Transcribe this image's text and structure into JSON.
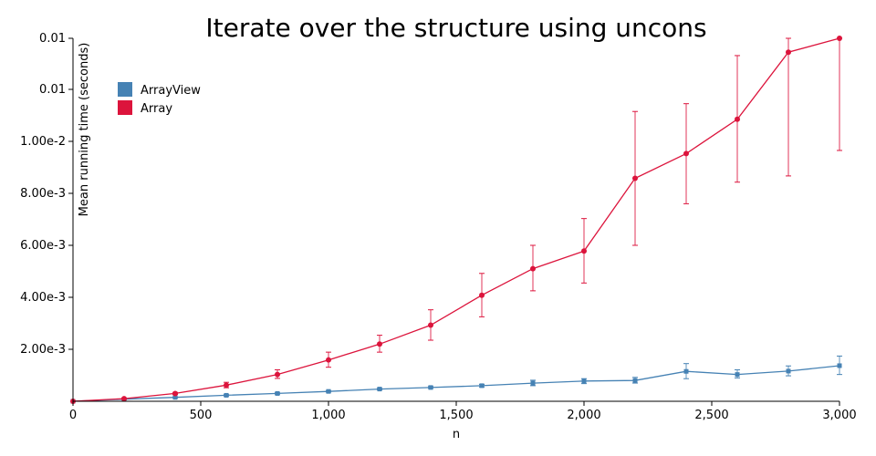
{
  "chart_data": {
    "type": "line",
    "title": "Iterate over the structure using uncons",
    "xlabel": "n",
    "ylabel": "Mean running time (seconds)",
    "xlim": [
      0,
      3000
    ],
    "ylim": [
      0,
      0.0141
    ],
    "grid": false,
    "legend_position": "top-left",
    "x_ticks": [
      {
        "value": 0,
        "label": "0"
      },
      {
        "value": 500,
        "label": "500"
      },
      {
        "value": 1000,
        "label": "1,000"
      },
      {
        "value": 1500,
        "label": "1,500"
      },
      {
        "value": 2000,
        "label": "2,000"
      },
      {
        "value": 2500,
        "label": "2,500"
      },
      {
        "value": 3000,
        "label": "3,000"
      }
    ],
    "y_ticks": [
      {
        "value": 0.002,
        "label": "2.00e-3"
      },
      {
        "value": 0.004,
        "label": "4.00e-3"
      },
      {
        "value": 0.006,
        "label": "6.00e-3"
      },
      {
        "value": 0.008,
        "label": "8.00e-3"
      },
      {
        "value": 0.01,
        "label": "1.00e-2"
      },
      {
        "value": 0.012,
        "label": "0.01"
      },
      {
        "value": 0.014,
        "label": "0.01"
      }
    ],
    "series": [
      {
        "name": "ArrayView",
        "color": "#4682b4",
        "marker": "square",
        "points": [
          {
            "x": 0,
            "y": 0.0,
            "lo": 0.0,
            "hi": 0.0
          },
          {
            "x": 200,
            "y": 8e-05,
            "lo": 6e-05,
            "hi": 0.0001
          },
          {
            "x": 400,
            "y": 0.00015,
            "lo": 0.00013,
            "hi": 0.00017
          },
          {
            "x": 600,
            "y": 0.00023,
            "lo": 0.0002,
            "hi": 0.00026
          },
          {
            "x": 800,
            "y": 0.0003,
            "lo": 0.00027,
            "hi": 0.00033
          },
          {
            "x": 1000,
            "y": 0.00038,
            "lo": 0.00035,
            "hi": 0.00041
          },
          {
            "x": 1200,
            "y": 0.00047,
            "lo": 0.00044,
            "hi": 0.0005
          },
          {
            "x": 1400,
            "y": 0.00053,
            "lo": 0.0005,
            "hi": 0.00057
          },
          {
            "x": 1600,
            "y": 0.0006,
            "lo": 0.00055,
            "hi": 0.00065
          },
          {
            "x": 1800,
            "y": 0.0007,
            "lo": 0.0006,
            "hi": 0.00081
          },
          {
            "x": 2000,
            "y": 0.00078,
            "lo": 0.00068,
            "hi": 0.00087
          },
          {
            "x": 2200,
            "y": 0.0008,
            "lo": 0.0007,
            "hi": 0.00092
          },
          {
            "x": 2400,
            "y": 0.00115,
            "lo": 0.00087,
            "hi": 0.00145
          },
          {
            "x": 2600,
            "y": 0.00103,
            "lo": 0.0009,
            "hi": 0.00121
          },
          {
            "x": 2800,
            "y": 0.00116,
            "lo": 0.00098,
            "hi": 0.00136
          },
          {
            "x": 3000,
            "y": 0.00137,
            "lo": 0.00103,
            "hi": 0.00174
          }
        ]
      },
      {
        "name": "Array",
        "color": "#dc143c",
        "marker": "circle",
        "points": [
          {
            "x": 0,
            "y": 0.0,
            "lo": 0.0,
            "hi": 0.0
          },
          {
            "x": 200,
            "y": 0.0001,
            "lo": 8e-05,
            "hi": 0.00012
          },
          {
            "x": 400,
            "y": 0.0003,
            "lo": 0.00026,
            "hi": 0.00034
          },
          {
            "x": 600,
            "y": 0.00062,
            "lo": 0.00052,
            "hi": 0.00073
          },
          {
            "x": 800,
            "y": 0.00103,
            "lo": 0.00088,
            "hi": 0.00121
          },
          {
            "x": 1000,
            "y": 0.00159,
            "lo": 0.00131,
            "hi": 0.00189
          },
          {
            "x": 1200,
            "y": 0.0022,
            "lo": 0.00189,
            "hi": 0.00254
          },
          {
            "x": 1400,
            "y": 0.00293,
            "lo": 0.00235,
            "hi": 0.00352
          },
          {
            "x": 1600,
            "y": 0.00408,
            "lo": 0.00325,
            "hi": 0.00492
          },
          {
            "x": 1800,
            "y": 0.0051,
            "lo": 0.00425,
            "hi": 0.006
          },
          {
            "x": 2000,
            "y": 0.00578,
            "lo": 0.00455,
            "hi": 0.00703
          },
          {
            "x": 2200,
            "y": 0.00858,
            "lo": 0.006,
            "hi": 0.01115
          },
          {
            "x": 2400,
            "y": 0.00953,
            "lo": 0.0076,
            "hi": 0.01145
          },
          {
            "x": 2600,
            "y": 0.01085,
            "lo": 0.00843,
            "hi": 0.0133
          },
          {
            "x": 2800,
            "y": 0.01343,
            "lo": 0.00867,
            "hi": 0.0141
          },
          {
            "x": 3000,
            "y": 0.01413,
            "lo": 0.00965,
            "hi": 0.0141
          }
        ]
      }
    ]
  }
}
